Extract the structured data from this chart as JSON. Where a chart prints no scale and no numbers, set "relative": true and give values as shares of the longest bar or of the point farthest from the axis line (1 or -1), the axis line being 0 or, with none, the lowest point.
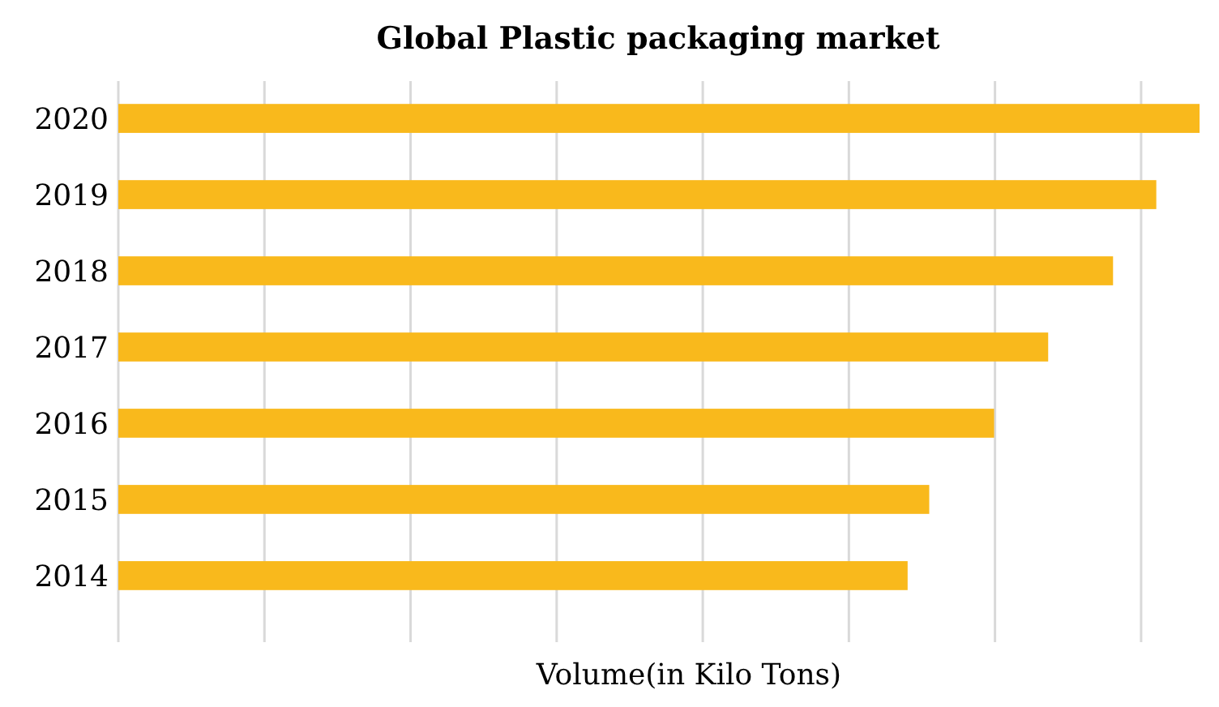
{
  "chart_data": {
    "type": "bar",
    "orientation": "horizontal",
    "relative": true,
    "title": "Global  Plastic packaging  market",
    "xlabel": "Volume(in Kilo Tons)",
    "categories": [
      "2020",
      "2019",
      "2018",
      "2017",
      "2016",
      "2015",
      "2014"
    ],
    "values": [
      1,
      0.96,
      0.92,
      0.86,
      0.81,
      0.75,
      0.73
    ],
    "color": "#f9b91c",
    "grid": "x"
  }
}
